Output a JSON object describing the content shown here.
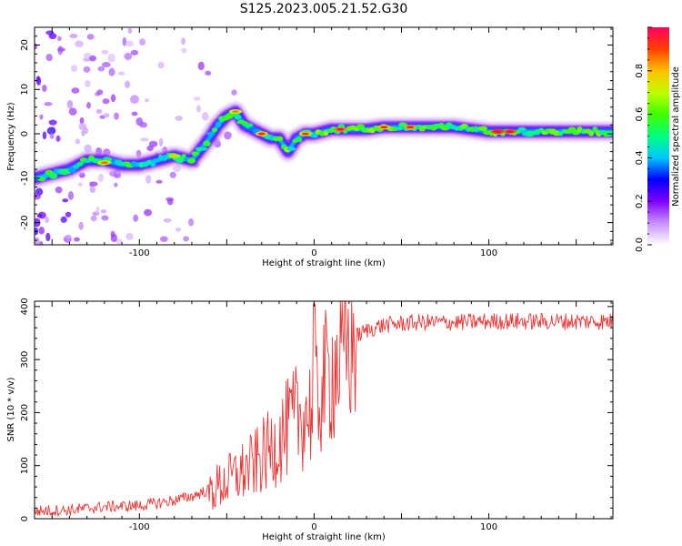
{
  "title": "S125.2023.005.21.52.G30",
  "chart_data": [
    {
      "type": "heatmap",
      "xlabel": "Height of straight line (km)",
      "ylabel": "Frequency (Hz)",
      "xlim": [
        -160,
        171
      ],
      "ylim": [
        -25,
        24
      ],
      "xticks": [
        -100,
        0,
        100
      ],
      "yticks": [
        -20,
        -10,
        0,
        10,
        20
      ],
      "colorbar": {
        "label": "Normalized spectral amplitude",
        "range": [
          0,
          1
        ],
        "ticks": [
          "0.0",
          "0.2",
          "0.4",
          "0.6",
          "0.8"
        ],
        "colormap": [
          "#ffffff",
          "#c890ff",
          "#8000ff",
          "#0000ff",
          "#00c8ff",
          "#00ff80",
          "#40ff00",
          "#c0ff00",
          "#ffc000",
          "#ff4000",
          "#ff0060"
        ]
      },
      "ridge_x": [
        -160,
        -150,
        -140,
        -130,
        -120,
        -110,
        -100,
        -90,
        -80,
        -70,
        -60,
        -55,
        -50,
        -45,
        -40,
        -35,
        -30,
        -25,
        -20,
        -15,
        -10,
        -5,
        0,
        10,
        20,
        30,
        40,
        60,
        80,
        100,
        120,
        140,
        160,
        171
      ],
      "ridge_freq": [
        -10,
        -9,
        -8,
        -6,
        -6,
        -7,
        -7,
        -6,
        -5,
        -6,
        -1,
        2,
        4,
        5,
        2,
        1,
        0,
        -1,
        -1,
        -4,
        -1,
        0,
        0,
        1,
        1,
        1,
        1.5,
        1.5,
        1.5,
        0.5,
        0.5,
        0.5,
        0.5,
        0.5
      ]
    },
    {
      "type": "line",
      "xlabel": "Height of straight line (km)",
      "ylabel": "SNR (10 * v/v)",
      "xlim": [
        -160,
        171
      ],
      "ylim": [
        0,
        410
      ],
      "xticks": [
        -100,
        0,
        100
      ],
      "yticks": [
        0,
        100,
        200,
        300,
        400
      ],
      "color": "#ee3333",
      "series": [
        {
          "x": [
            -160,
            -140,
            -120,
            -100,
            -90,
            -80,
            -70,
            -60,
            -50,
            -45,
            -40,
            -35,
            -30,
            -25,
            -20,
            -15,
            -10,
            -5,
            0,
            5,
            10,
            15,
            20,
            25,
            30,
            40,
            50,
            60,
            80,
            100,
            120,
            140,
            160,
            171
          ],
          "y": [
            10,
            12,
            18,
            20,
            25,
            30,
            38,
            50,
            70,
            80,
            90,
            100,
            115,
            130,
            150,
            170,
            190,
            200,
            210,
            250,
            280,
            300,
            320,
            345,
            355,
            365,
            368,
            370,
            370,
            372,
            372,
            372,
            372,
            372
          ]
        }
      ]
    }
  ]
}
